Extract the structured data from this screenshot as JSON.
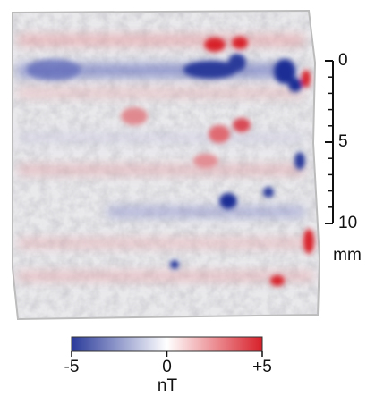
{
  "scale_bar": {
    "ticks": [
      0,
      5,
      10
    ],
    "unit": "mm"
  },
  "colorbar": {
    "ticks": [
      -5,
      0,
      {
        "value": 5,
        "label": "+5"
      }
    ],
    "unit": "nT",
    "colors": [
      "#2a3a9a",
      "#ffffff",
      "#d8202a"
    ]
  }
}
